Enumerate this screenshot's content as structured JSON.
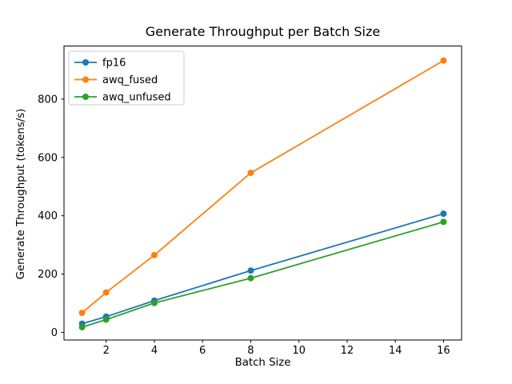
{
  "chart_data": {
    "type": "line",
    "title": "Generate Throughput per Batch Size",
    "xlabel": "Batch Size",
    "ylabel": "Generate Throughput (tokens/s)",
    "x": [
      1,
      2,
      4,
      8,
      16
    ],
    "series": [
      {
        "name": "fp16",
        "color": "#1f77b4",
        "values": [
          30,
          54,
          109,
          212,
          407
        ]
      },
      {
        "name": "awq_fused",
        "color": "#ff7f0e",
        "values": [
          67,
          137,
          265,
          547,
          932
        ]
      },
      {
        "name": "awq_unfused",
        "color": "#2ca02c",
        "values": [
          18,
          44,
          101,
          186,
          379
        ]
      }
    ],
    "xticks": [
      2,
      4,
      6,
      8,
      10,
      12,
      14,
      16
    ],
    "yticks": [
      0,
      200,
      400,
      600,
      800
    ],
    "xlim": [
      0.25,
      16.75
    ],
    "ylim": [
      -26,
      982
    ],
    "legend_position": "upper-left",
    "grid": false,
    "marker": "o",
    "line_width": 1.8,
    "marker_radius": 4,
    "axis_color": "#000000",
    "legend_border_color": "#cccccc",
    "background": "#ffffff"
  }
}
